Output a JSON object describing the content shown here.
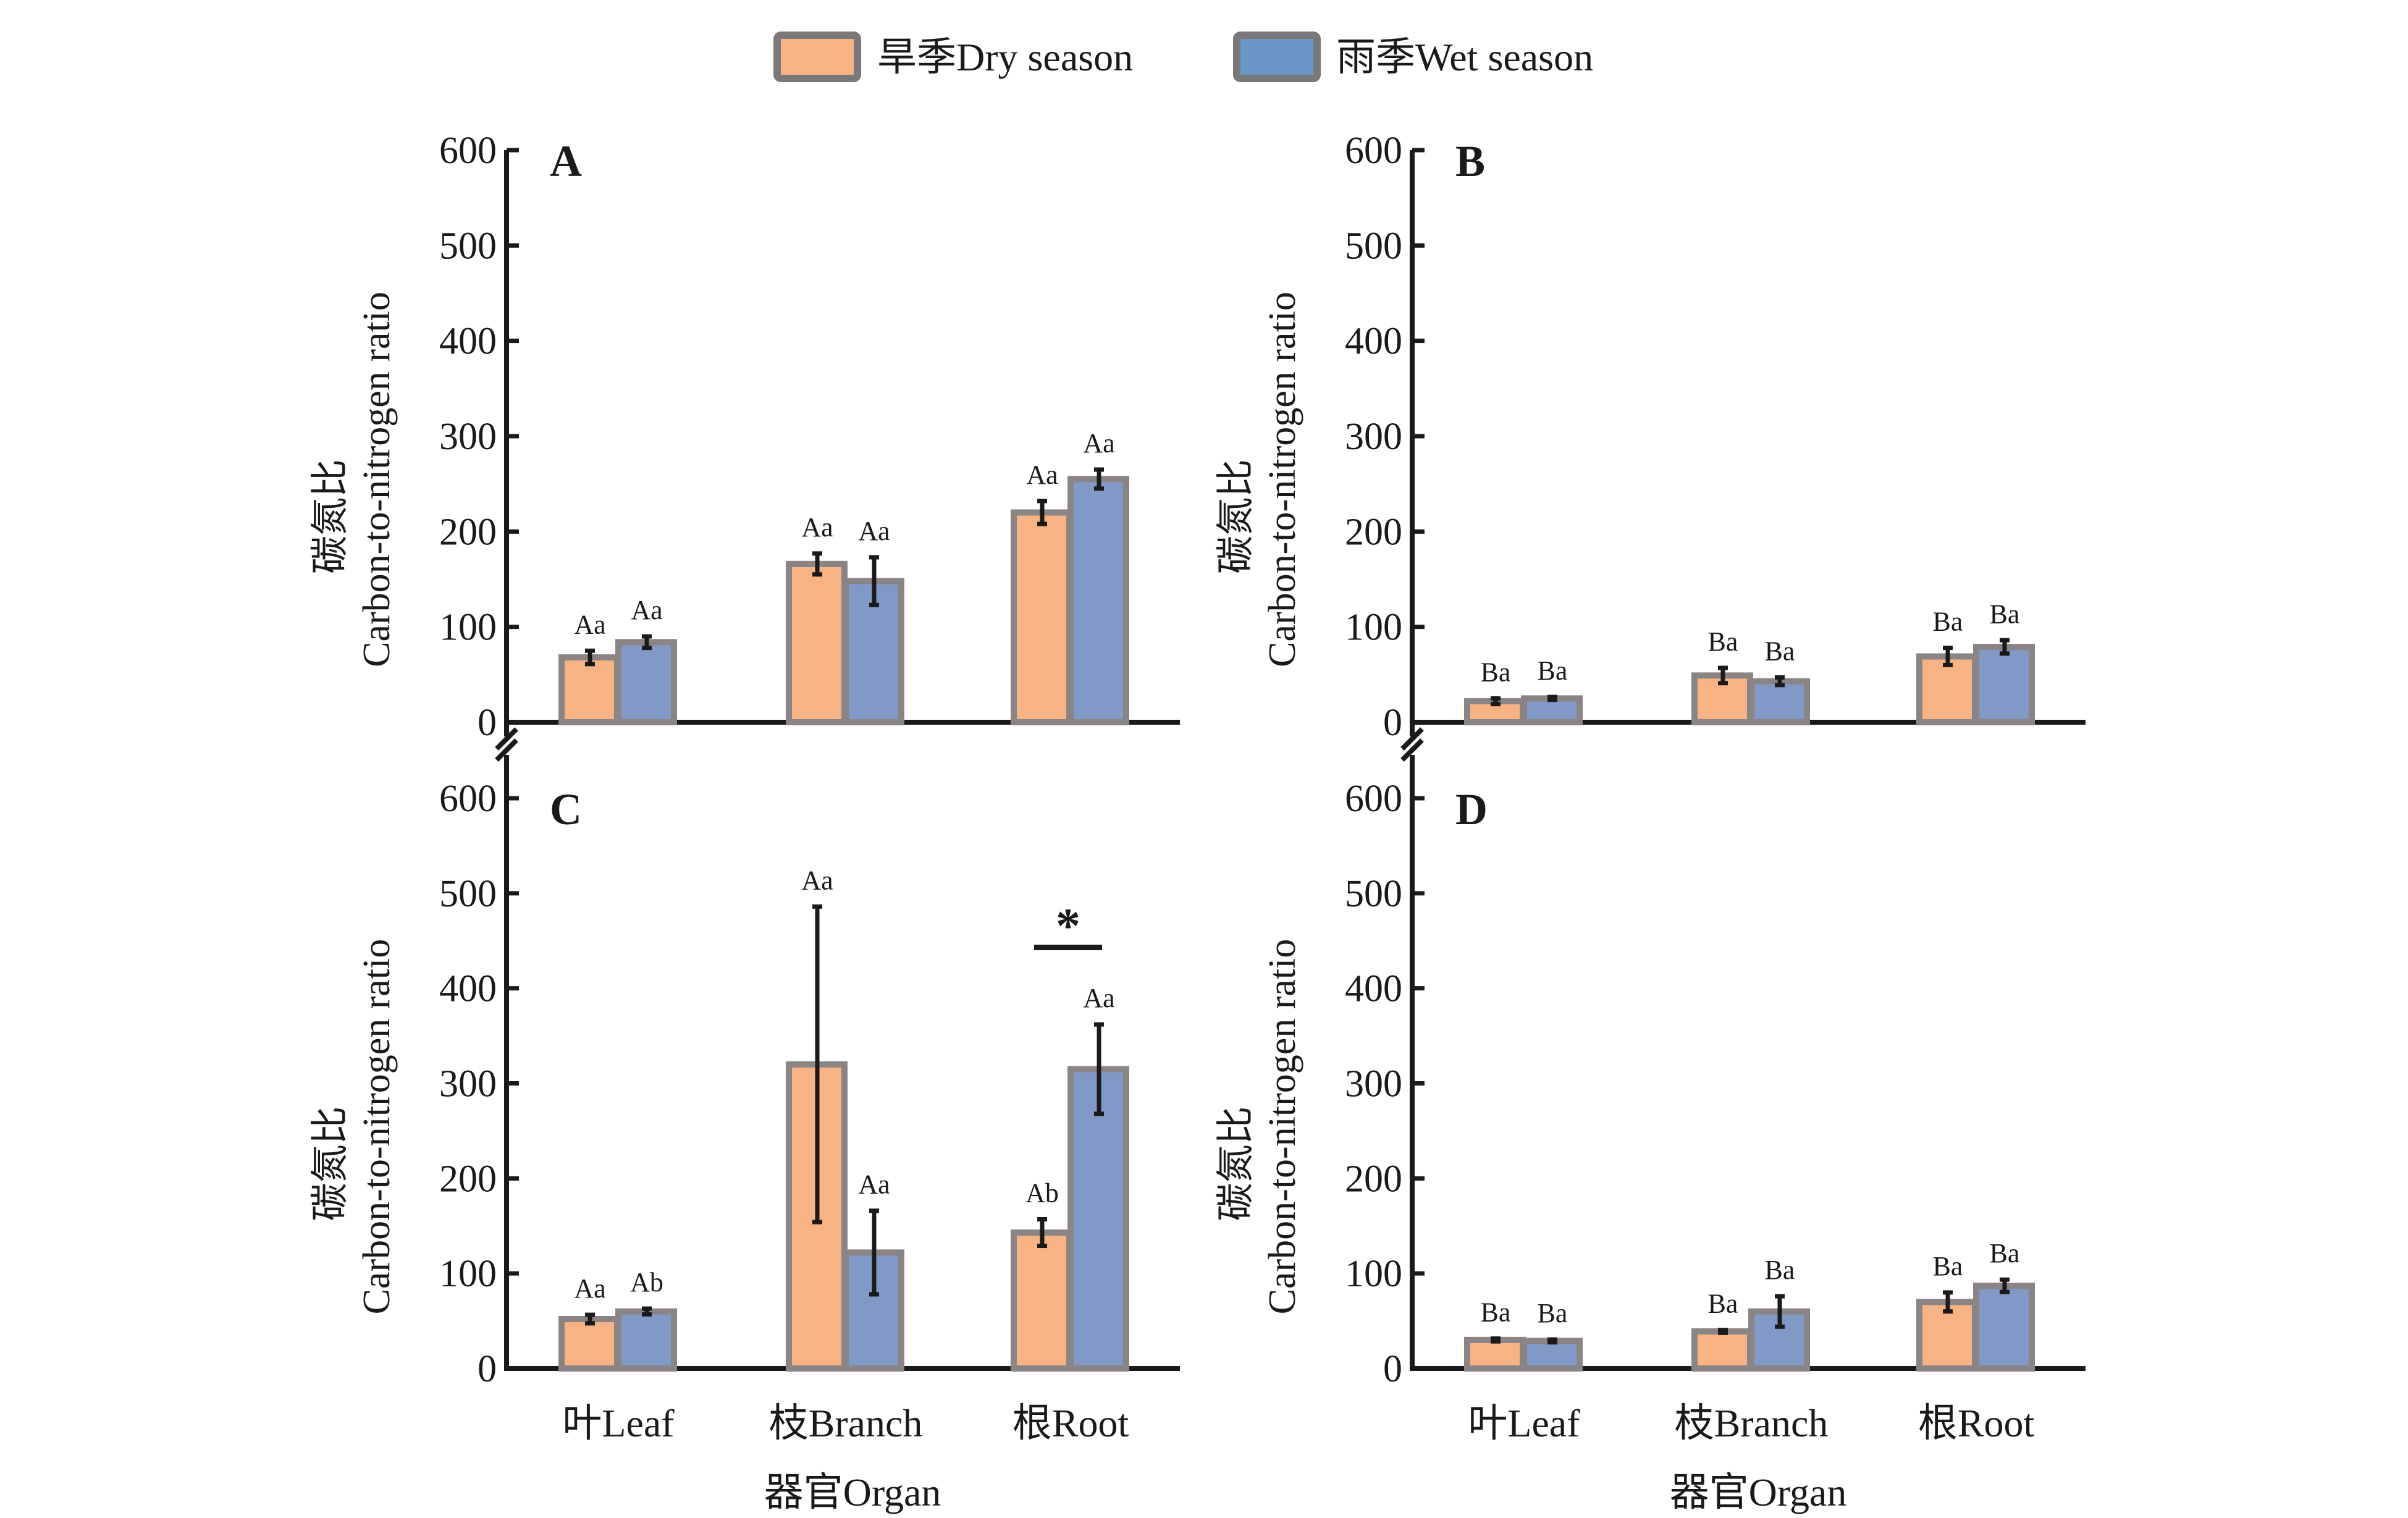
{
  "colors": {
    "dry": "#F7B384",
    "wet": "#8199C6",
    "legend_wet": "#6B96C8",
    "bar_border": "#8A8584",
    "axis": "#1a1a1a"
  },
  "legend": [
    {
      "key": "dry",
      "label": "旱季Dry season"
    },
    {
      "key": "wet",
      "label": "雨季Wet season"
    }
  ],
  "chart_data": [
    {
      "panel": "A",
      "type": "bar",
      "ylabel_cn": "碳氮比",
      "ylabel_en": "Carbon-to-nitrogen ratio",
      "xlabel": "",
      "categories": [
        "叶Leaf",
        "枝Branch",
        "根Root"
      ],
      "ylim": [
        0,
        600
      ],
      "yticks": [
        0,
        100,
        200,
        300,
        400,
        500,
        600
      ],
      "series": [
        {
          "name": "旱季Dry season",
          "key": "dry",
          "values": [
            68,
            166,
            220
          ],
          "errors": [
            7,
            11,
            12
          ],
          "labels": [
            "Aa",
            "Aa",
            "Aa"
          ]
        },
        {
          "name": "雨季Wet season",
          "key": "wet",
          "values": [
            84,
            148,
            255
          ],
          "errors": [
            6,
            25,
            10
          ],
          "labels": [
            "Aa",
            "Aa",
            "Aa"
          ]
        }
      ],
      "show_xticklabels": false,
      "significance": []
    },
    {
      "panel": "B",
      "type": "bar",
      "ylabel_cn": "碳氮比",
      "ylabel_en": "Carbon-to-nitrogen ratio",
      "xlabel": "",
      "categories": [
        "叶Leaf",
        "枝Branch",
        "根Root"
      ],
      "ylim": [
        0,
        600
      ],
      "yticks": [
        0,
        100,
        200,
        300,
        400,
        500,
        600
      ],
      "series": [
        {
          "name": "旱季Dry season",
          "key": "dry",
          "values": [
            22,
            49,
            69
          ],
          "errors": [
            3,
            8,
            9
          ],
          "labels": [
            "Ba",
            "Ba",
            "Ba"
          ]
        },
        {
          "name": "雨季Wet season",
          "key": "wet",
          "values": [
            25,
            43,
            79
          ],
          "errors": [
            1.5,
            4,
            7
          ],
          "labels": [
            "Ba",
            "Ba",
            "Ba"
          ]
        }
      ],
      "show_xticklabels": false,
      "significance": []
    },
    {
      "panel": "C",
      "type": "bar",
      "ylabel_cn": "碳氮比",
      "ylabel_en": "Carbon-to-nitrogen ratio",
      "xlabel": "器官Organ",
      "categories": [
        "叶Leaf",
        "枝Branch",
        "根Root"
      ],
      "ylim": [
        0,
        600
      ],
      "yticks": [
        0,
        100,
        200,
        300,
        400,
        500,
        600
      ],
      "series": [
        {
          "name": "旱季Dry season",
          "key": "dry",
          "values": [
            52,
            320,
            143
          ],
          "errors": [
            4.5,
            166,
            14
          ],
          "labels": [
            "Aa",
            "Aa",
            "Ab"
          ]
        },
        {
          "name": "雨季Wet season",
          "key": "wet",
          "values": [
            60,
            122,
            315
          ],
          "errors": [
            3,
            44,
            47
          ],
          "labels": [
            "Ab",
            "Aa",
            "Aa"
          ]
        }
      ],
      "show_xticklabels": true,
      "significance": [
        {
          "category_index": 2,
          "y": 443,
          "mark": "*"
        }
      ]
    },
    {
      "panel": "D",
      "type": "bar",
      "ylabel_cn": "碳氮比",
      "ylabel_en": "Carbon-to-nitrogen ratio",
      "xlabel": "器官Organ",
      "categories": [
        "叶Leaf",
        "枝Branch",
        "根Root"
      ],
      "ylim": [
        0,
        600
      ],
      "yticks": [
        0,
        100,
        200,
        300,
        400,
        500,
        600
      ],
      "series": [
        {
          "name": "旱季Dry season",
          "key": "dry",
          "values": [
            30,
            39,
            70
          ],
          "errors": [
            1.5,
            1.5,
            10
          ],
          "labels": [
            "Ba",
            "Ba",
            "Ba"
          ]
        },
        {
          "name": "雨季Wet season",
          "key": "wet",
          "values": [
            29,
            60,
            87
          ],
          "errors": [
            1.5,
            16,
            6.5
          ],
          "labels": [
            "Ba",
            "Ba",
            "Ba"
          ]
        }
      ],
      "show_xticklabels": true,
      "significance": []
    }
  ]
}
